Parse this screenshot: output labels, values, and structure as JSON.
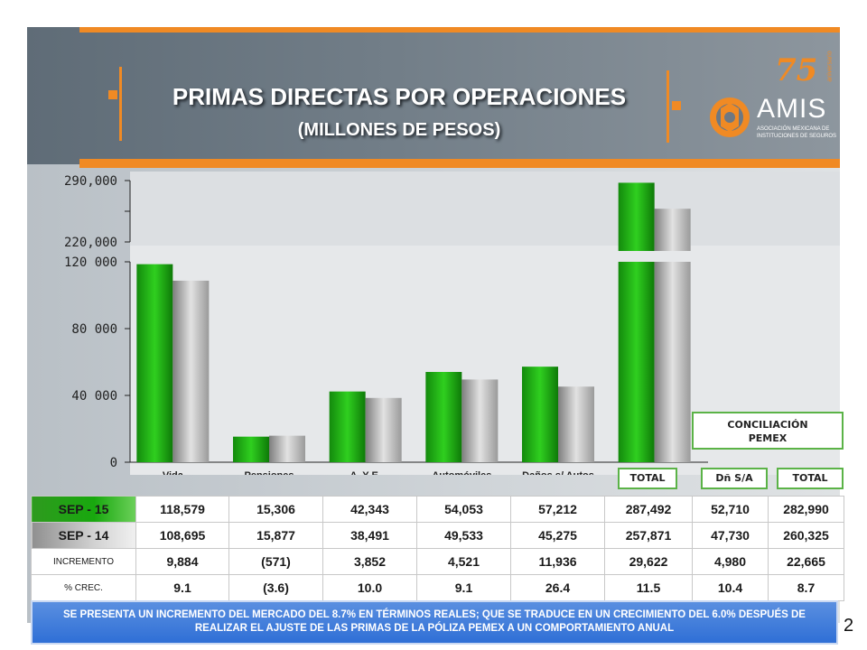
{
  "title": "PRIMAS DIRECTAS POR OPERACIONES",
  "subtitle": "(MILLONES DE PESOS)",
  "logo": {
    "number": "75",
    "aniversario": "aniversario",
    "name": "AMIS",
    "line1": "ASOCIACIÓN MEXICANA DE",
    "line2": "INSTITUCIONES DE SEGUROS"
  },
  "colors": {
    "green": "#1a9e10",
    "gray": "#b5b5b5",
    "accent": "#f08a24",
    "note_bg": "#3a78d8"
  },
  "chart_data": {
    "type": "bar",
    "axis_break": true,
    "lower_ylim": [
      0,
      120000
    ],
    "upper_ylim": [
      220000,
      290000
    ],
    "lower_ticks": [
      "0",
      "40 000",
      "80 000",
      "120 000"
    ],
    "upper_ticks": [
      "220,000",
      "290,000"
    ],
    "categories": [
      "Vida",
      "Pensiones",
      "A. Y E.",
      "Automóviles",
      "Daños s/ Autos",
      "TOTAL"
    ],
    "series": [
      {
        "values": [
          118579,
          15306,
          42343,
          54053,
          57212,
          287492
        ]
      },
      {
        "values": [
          108695,
          15877,
          38491,
          49533,
          45275,
          257871
        ]
      }
    ],
    "grid": false,
    "legend": "none"
  },
  "conciliacion": {
    "title_line1": "CONCILIACIÓN",
    "title_line2": "PEMEX",
    "headers": [
      "Dñ S/A",
      "TOTAL"
    ]
  },
  "table": {
    "rows": [
      {
        "label": "SEP - 15",
        "values": [
          "118,579",
          "15,306",
          "42,343",
          "54,053",
          "57,212",
          "287,492"
        ],
        "extra": [
          "52,710",
          "282,990"
        ]
      },
      {
        "label": "SEP - 14",
        "values": [
          "108,695",
          "15,877",
          "38,491",
          "49,533",
          "45,275",
          "257,871"
        ],
        "extra": [
          "47,730",
          "260,325"
        ]
      },
      {
        "label": "INCREMENTO",
        "values": [
          "9,884",
          "(571)",
          "3,852",
          "4,521",
          "11,936",
          "29,622"
        ],
        "extra": [
          "4,980",
          "22,665"
        ]
      },
      {
        "label": "% CREC.",
        "values": [
          "9.1",
          "(3.6)",
          "10.0",
          "9.1",
          "26.4",
          "11.5"
        ],
        "extra": [
          "10.4",
          "8.7"
        ]
      }
    ]
  },
  "note": "SE PRESENTA UN INCREMENTO DEL MERCADO DEL 8.7% EN TÉRMINOS REALES; QUE SE TRADUCE EN UN CRECIMIENTO DEL 6.0% DESPUÉS DE REALIZAR EL AJUSTE DE LAS PRIMAS DE LA PÓLIZA PEMEX A UN COMPORTAMIENTO ANUAL",
  "page_number": "2"
}
